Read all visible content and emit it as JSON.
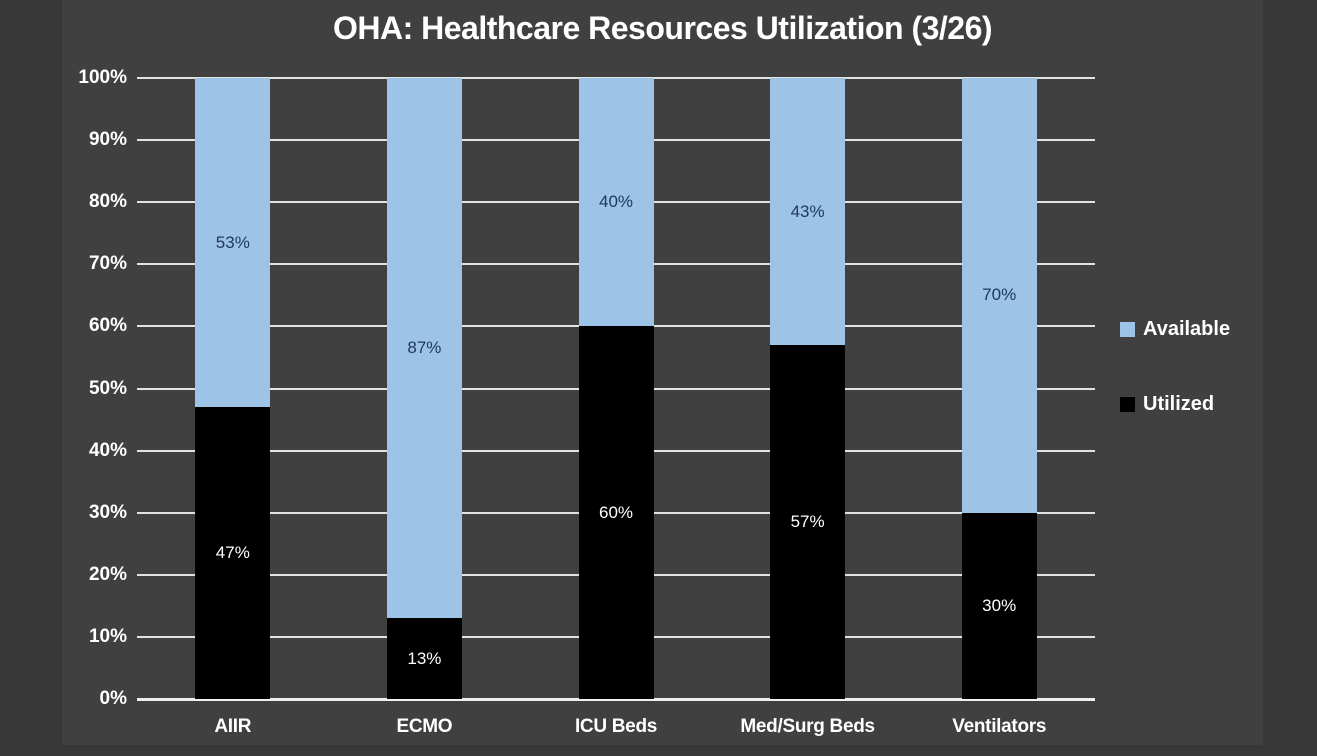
{
  "title": "OHA: Healthcare Resources Utilization (3/26)",
  "colors": {
    "outer_background": "#383838",
    "slide_background": "#404040",
    "available_fill": "#9DC3E6",
    "utilized_fill": "#000000",
    "gridline": "#E2E2E2",
    "axis_line": "#EFEFEF",
    "text": "#FFFFFF",
    "label_on_available": "#1F3864",
    "label_on_utilized": "#FFFFFF"
  },
  "legend": {
    "position": "right",
    "items": [
      {
        "label": "Available",
        "color": "#9DC3E6"
      },
      {
        "label": "Utilized",
        "color": "#000000"
      }
    ]
  },
  "chart_data": {
    "type": "bar",
    "stacked": true,
    "title": "OHA: Healthcare Resources Utilization (3/26)",
    "categories": [
      "AIIR",
      "ECMO",
      "ICU Beds",
      "Med/Surg Beds",
      "Ventilators"
    ],
    "series": [
      {
        "name": "Utilized",
        "color": "#000000",
        "values": [
          47,
          13,
          60,
          57,
          30
        ],
        "label_color": "#FFFFFF"
      },
      {
        "name": "Available",
        "color": "#9DC3E6",
        "values": [
          53,
          87,
          40,
          43,
          70
        ],
        "label_color": "#1F3864"
      }
    ],
    "data_label_format": "percent",
    "xlabel": "",
    "ylabel": "",
    "ylim": [
      0,
      100
    ],
    "ytick_step": 10,
    "ytick_labels": [
      "0%",
      "10%",
      "20%",
      "30%",
      "40%",
      "50%",
      "60%",
      "70%",
      "80%",
      "90%",
      "100%"
    ],
    "grid": true,
    "legend_position": "right"
  }
}
